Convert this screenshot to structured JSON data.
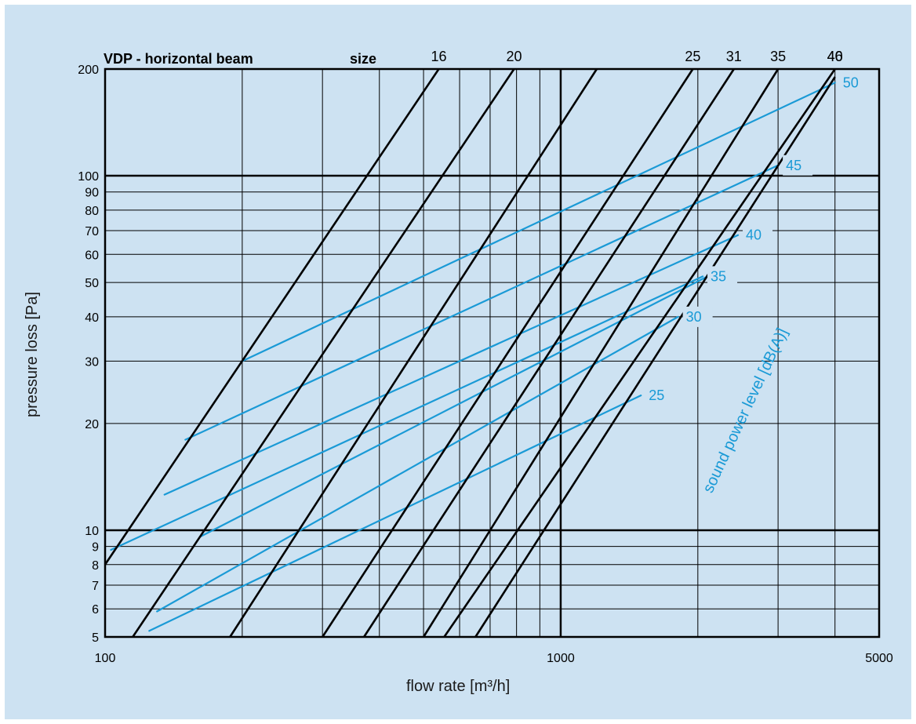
{
  "chart_data": {
    "type": "line",
    "title": "VDP - horizontal beam",
    "size_header": "size",
    "xlabel": "flow rate [m³/h]",
    "ylabel": "pressure loss [Pa]",
    "sound_axis_label": "sound power level [dB(A)]",
    "x_scale": "log",
    "y_scale": "log",
    "xlim": [
      100,
      5000
    ],
    "ylim": [
      5,
      200
    ],
    "grid": true,
    "colors": {
      "background": "#cde2f2",
      "size_lines": "#000000",
      "sound_lines": "#1a9ad6",
      "grid": "#000000"
    },
    "x_ticks": [
      {
        "value": 100,
        "label": "100"
      },
      {
        "value": 1000,
        "label": "1000"
      },
      {
        "value": 5000,
        "label": "5000"
      }
    ],
    "y_ticks": [
      {
        "value": 200,
        "label": "200"
      },
      {
        "value": 100,
        "label": "100"
      },
      {
        "value": 90,
        "label": "90"
      },
      {
        "value": 80,
        "label": "80"
      },
      {
        "value": 70,
        "label": "70"
      },
      {
        "value": 60,
        "label": "60"
      },
      {
        "value": 50,
        "label": "50"
      },
      {
        "value": 40,
        "label": "40"
      },
      {
        "value": 30,
        "label": "30"
      },
      {
        "value": 20,
        "label": "20"
      },
      {
        "value": 10,
        "label": "10"
      },
      {
        "value": 9,
        "label": "9"
      },
      {
        "value": 8,
        "label": "8"
      },
      {
        "value": 7,
        "label": "7"
      },
      {
        "value": 6,
        "label": "6"
      },
      {
        "value": 5,
        "label": "5"
      }
    ],
    "x_grid": [
      200,
      300,
      400,
      500,
      600,
      700,
      800,
      900,
      1000,
      2000,
      3000,
      4000
    ],
    "y_grid": [
      6,
      7,
      8,
      9,
      10,
      20,
      30,
      40,
      50,
      60,
      70,
      80,
      90,
      100
    ],
    "size_series": [
      {
        "name": "16",
        "x": [
          100,
          540
        ],
        "y": [
          8,
          200
        ]
      },
      {
        "name": "20",
        "x": [
          115,
          790
        ],
        "y": [
          5,
          200
        ]
      },
      {
        "name": "",
        "x": [
          188,
          1200
        ],
        "y": [
          5,
          200
        ]
      },
      {
        "name": "25",
        "x": [
          300,
          1950
        ],
        "y": [
          5,
          200
        ]
      },
      {
        "name": "31",
        "x": [
          370,
          2400
        ],
        "y": [
          5,
          200
        ]
      },
      {
        "name": "35",
        "x": [
          500,
          3000
        ],
        "y": [
          5,
          200
        ]
      },
      {
        "name": "40",
        "x": [
          555,
          4000
        ],
        "y": [
          5,
          200
        ]
      },
      {
        "name": "46",
        "x": [
          650,
          4000
        ],
        "y": [
          5,
          190
        ]
      }
    ],
    "sound_series": [
      {
        "name": "50",
        "x": [
          200,
          4000
        ],
        "y": [
          30,
          183
        ]
      },
      {
        "name": "45",
        "x": [
          150,
          3000
        ],
        "y": [
          18,
          107
        ]
      },
      {
        "name": "40",
        "x": [
          135,
          2450
        ],
        "y": [
          12.6,
          68
        ]
      },
      {
        "name": "35",
        "x": [
          103,
          2050
        ],
        "y": [
          8.8,
          52
        ]
      },
      {
        "name": "",
        "x": [
          162,
          2100
        ],
        "y": [
          9.6,
          52
        ]
      },
      {
        "name": "30",
        "x": [
          130,
          1810
        ],
        "y": [
          5.9,
          40
        ]
      },
      {
        "name": "25",
        "x": [
          125,
          1500
        ],
        "y": [
          5.2,
          24
        ]
      }
    ]
  }
}
